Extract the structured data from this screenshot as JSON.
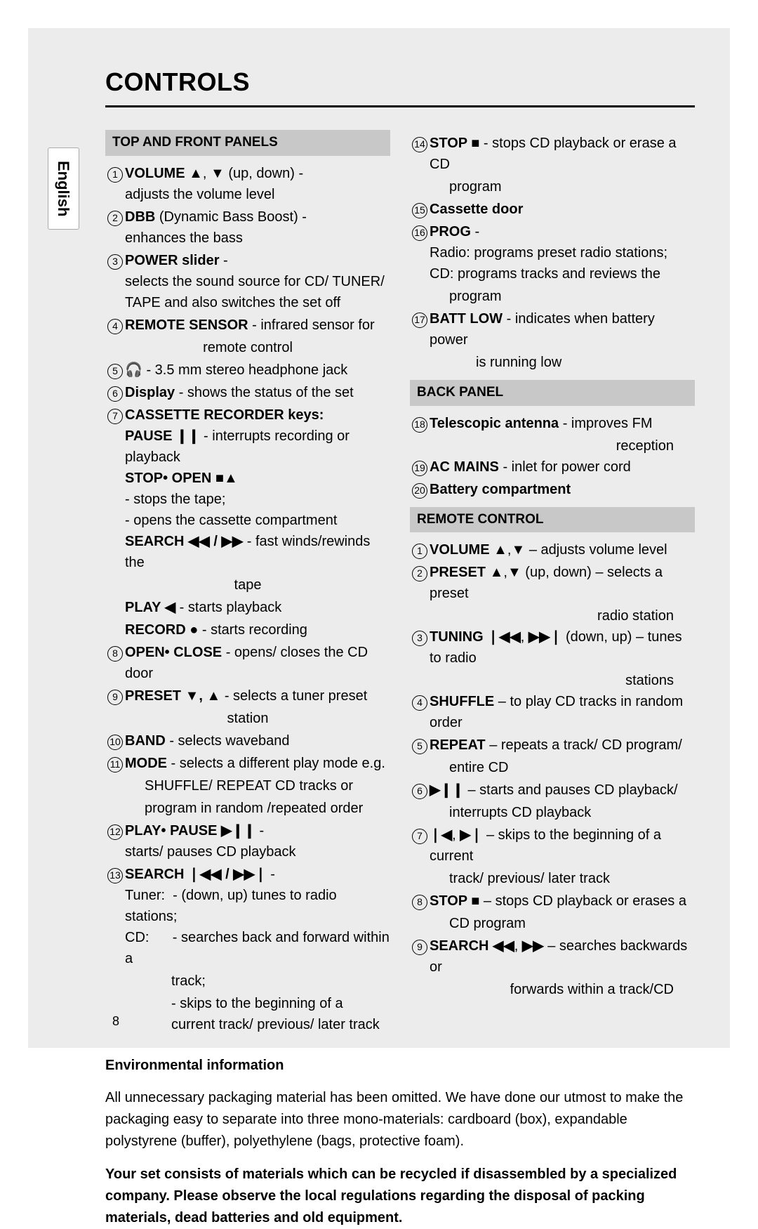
{
  "title": "CONTROLS",
  "language_tab": "English",
  "page_number": "8",
  "sections": {
    "top_front": "TOP AND FRONT PANELS",
    "back_panel": "BACK PANEL",
    "remote": "REMOTE CONTROL"
  },
  "left_items": [
    {
      "n": "1",
      "lines": [
        "<b>VOLUME ▲</b>, <b>▼</b> (up, down) -",
        "adjusts the volume level"
      ]
    },
    {
      "n": "2",
      "lines": [
        "<b>DBB</b> (Dynamic Bass Boost) -",
        "enhances the bass"
      ]
    },
    {
      "n": "3",
      "lines": [
        "<b>POWER slider</b> -",
        "selects the sound source for CD/ TUNER/ TAPE and also switches the set off"
      ]
    },
    {
      "n": "4",
      "lines": [
        "<b>REMOTE SENSOR</b> - infrared sensor for"
      ],
      "center_cont": "remote control"
    },
    {
      "n": "5",
      "lines": [
        "🎧 - 3.5 mm stereo headphone jack"
      ]
    },
    {
      "n": "6",
      "lines": [
        "<b>Display</b> - shows the status of the set"
      ]
    },
    {
      "n": "7",
      "lines": [
        "<b>CASSETTE RECORDER keys:</b>",
        "<b>PAUSE ❙❙</b> - interrupts recording or playback",
        "<b>STOP• OPEN ■▲</b>",
        "- stops the tape;",
        "- opens the cassette compartment",
        "<b>SEARCH ◀◀ / ▶▶</b>  - fast winds/rewinds the"
      ],
      "center_cont": "tape",
      "after": [
        "<b>PLAY ◀</b> - starts playback",
        "<b>RECORD ●</b> - starts recording"
      ]
    },
    {
      "n": "8",
      "lines": [
        "<b>OPEN• CLOSE</b> - opens/ closes the CD door"
      ]
    },
    {
      "n": "9",
      "lines": [
        "<b>PRESET ▼, ▲</b> - selects a tuner preset"
      ],
      "center_cont": "station"
    },
    {
      "n": "10",
      "lines": [
        "<b>BAND</b> - selects waveband"
      ]
    },
    {
      "n": "11",
      "lines": [
        "<b>MODE</b> - selects a different play mode e.g."
      ],
      "indent2_cont": [
        "SHUFFLE/ REPEAT CD tracks or",
        "program in random /repeated order"
      ]
    },
    {
      "n": "12",
      "lines": [
        "<b>PLAY• PAUSE ▶❙❙</b> -",
        "starts/ pauses CD playback"
      ]
    },
    {
      "n": "13",
      "lines": [
        "<b>SEARCH ❘◀◀ / ▶▶❘</b> -",
        "Tuner:&nbsp;&nbsp;- (down, up) tunes to radio stations;",
        "CD:&nbsp;&nbsp;&nbsp;&nbsp;&nbsp;&nbsp;- searches back and forward within a"
      ],
      "indent3_cont": [
        "track;",
        "- skips to the beginning of a current track/ previous/ later track"
      ],
      "indent3_style": "padding-left:90px"
    }
  ],
  "right_top_items": [
    {
      "n": "14",
      "lines": [
        "<b>STOP ■</b> - stops CD playback or erase a CD"
      ],
      "indent2_cont": [
        "program"
      ]
    },
    {
      "n": "15",
      "lines": [
        "<b>Cassette door</b>"
      ]
    },
    {
      "n": "16",
      "lines": [
        "<b>PROG</b> -",
        "Radio: programs preset radio stations;",
        "CD: programs tracks and reviews the"
      ],
      "indent2_cont": [
        "program"
      ]
    },
    {
      "n": "17",
      "lines": [
        "<b>BATT LOW</b> - indicates when battery power"
      ],
      "indent3_cont": [
        "is running low"
      ]
    }
  ],
  "right_back_items": [
    {
      "n": "18",
      "lines": [
        "<b>Telescopic antenna</b> - improves FM"
      ],
      "right_cont": "reception"
    },
    {
      "n": "19",
      "lines": [
        "<b>AC MAINS</b> - inlet for power cord"
      ]
    },
    {
      "n": "20",
      "lines": [
        "<b>Battery compartment</b>"
      ]
    }
  ],
  "right_remote_items": [
    {
      "n": "1",
      "lines": [
        "<b>VOLUME ▲</b>,<b>▼</b> – adjusts volume level"
      ]
    },
    {
      "n": "2",
      "lines": [
        "<b>PRESET ▲</b>,<b>▼</b> (up, down) – selects a preset"
      ],
      "right_cont": "radio station"
    },
    {
      "n": "3",
      "lines": [
        "<b>TUNING ❘◀◀</b>, <b>▶▶❘</b> (down, up) – tunes to radio"
      ],
      "right_cont": "stations"
    },
    {
      "n": "4",
      "lines": [
        "<b>SHUFFLE</b> – to play CD tracks in random order"
      ]
    },
    {
      "n": "5",
      "lines": [
        "<b>REPEAT</b> – repeats a track/ CD program/"
      ],
      "indent2_cont": [
        "entire CD"
      ]
    },
    {
      "n": "6",
      "lines": [
        "<b>▶❙❙</b> – starts and pauses CD playback/"
      ],
      "indent2_cont": [
        "interrupts CD playback"
      ]
    },
    {
      "n": "7",
      "lines": [
        "<b>❘◀</b>, <b>▶❘</b> – skips to the beginning of a current"
      ],
      "indent2_cont": [
        "track/ previous/ later track"
      ]
    },
    {
      "n": "8",
      "lines": [
        "<b>STOP ■</b> – stops CD playback or erases a"
      ],
      "indent2_cont": [
        "CD program"
      ]
    },
    {
      "n": "9",
      "lines": [
        "<b>SEARCH ◀◀</b>, <b>▶▶</b> – searches backwards or"
      ],
      "right_cont": "forwards within a track/CD"
    }
  ],
  "env": {
    "title": "Environmental information",
    "para1": "All unnecessary packaging material has been omitted. We have done our utmost to make the packaging easy to separate into three mono-materials: cardboard (box), expandable polystyrene (buffer), polyethylene (bags, protective foam).",
    "para2": "Your set consists of materials which can be recycled if disassembled by a specialized company. Please observe the local regulations regarding the disposal of packing materials, dead batteries and old equipment."
  },
  "colors": {
    "page_bg": "#ececec",
    "section_bg": "#c8c8c8",
    "text": "#000000"
  },
  "fontsize_pt": {
    "title": 27,
    "body": 15,
    "section_head": 14
  }
}
